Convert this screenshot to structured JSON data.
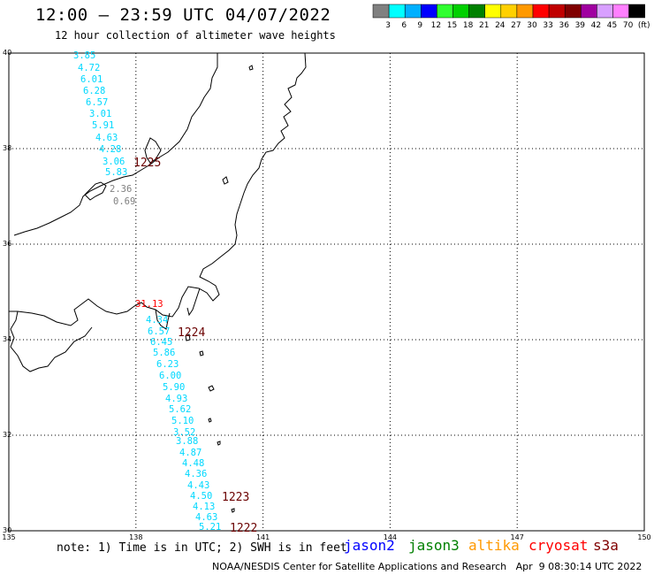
{
  "header": {
    "title": "12:00 – 23:59 UTC 04/07/2022",
    "subtitle": "12 hour collection of altimeter wave heights"
  },
  "color_scale": {
    "labels": [
      "3",
      "6",
      "9",
      "12",
      "15",
      "18",
      "21",
      "24",
      "27",
      "30",
      "33",
      "36",
      "39",
      "42",
      "45",
      "70",
      "(ft)"
    ],
    "colors": [
      "#808080",
      "#00ffff",
      "#00b0ff",
      "#0000ff",
      "#30ff30",
      "#00d000",
      "#008000",
      "#ffff00",
      "#ffd000",
      "#ff9900",
      "#ff0000",
      "#c00000",
      "#800000",
      "#a000a0",
      "#d8a0ff",
      "#ff80ff",
      "#000000"
    ]
  },
  "axes": {
    "lat_labels": [
      "40",
      "38",
      "36",
      "34",
      "32",
      "30"
    ],
    "lon_labels": [
      "135",
      "138",
      "141",
      "144",
      "147",
      "150"
    ],
    "lat_values": [
      40,
      38,
      36,
      34,
      32,
      30
    ],
    "lon_values": [
      135,
      138,
      141,
      144,
      147,
      150
    ],
    "lat_range": [
      30,
      40
    ],
    "lon_range": [
      135,
      150
    ],
    "grid_lon_values": [
      138,
      141,
      144,
      147
    ],
    "grid_lat_values": [
      38,
      36,
      34,
      32
    ]
  },
  "wave_readings": [
    {
      "text": "3.85",
      "color": "#00d8ff"
    },
    {
      "text": "4.72",
      "color": "#00d8ff"
    },
    {
      "text": "6.01",
      "color": "#00d8ff"
    },
    {
      "text": "6.28",
      "color": "#00d8ff"
    },
    {
      "text": "6.57",
      "color": "#00d8ff"
    },
    {
      "text": "3.01",
      "color": "#00d8ff"
    },
    {
      "text": "5.91",
      "color": "#00d8ff"
    },
    {
      "text": "4.63",
      "color": "#00d8ff"
    },
    {
      "text": "4.28",
      "color": "#00d8ff"
    },
    {
      "text": "3.06",
      "color": "#00d8ff"
    },
    {
      "text": "5.83",
      "color": "#00d8ff"
    },
    {
      "text": "2.36",
      "color": "#808080"
    },
    {
      "text": "0.69",
      "color": "#808080"
    },
    {
      "text": "31.13",
      "color": "#ff0000"
    },
    {
      "text": "4.34",
      "color": "#00d8ff"
    },
    {
      "text": "6.57",
      "color": "#00d8ff"
    },
    {
      "text": "6.45",
      "color": "#00d8ff"
    },
    {
      "text": "5.86",
      "color": "#00d8ff"
    },
    {
      "text": "6.23",
      "color": "#00d8ff"
    },
    {
      "text": "6.00",
      "color": "#00d8ff"
    },
    {
      "text": "5.90",
      "color": "#00d8ff"
    },
    {
      "text": "4.93",
      "color": "#00d8ff"
    },
    {
      "text": "5.62",
      "color": "#00d8ff"
    },
    {
      "text": "5.10",
      "color": "#00d8ff"
    },
    {
      "text": "3.52",
      "color": "#00d8ff"
    },
    {
      "text": "3.88",
      "color": "#00d8ff"
    },
    {
      "text": "4.87",
      "color": "#00d8ff"
    },
    {
      "text": "4.48",
      "color": "#00d8ff"
    },
    {
      "text": "4.36",
      "color": "#00d8ff"
    },
    {
      "text": "4.43",
      "color": "#00d8ff"
    },
    {
      "text": "4.50",
      "color": "#00d8ff"
    },
    {
      "text": "4.13",
      "color": "#00d8ff"
    },
    {
      "text": "4.63",
      "color": "#00d8ff"
    },
    {
      "text": "5.21",
      "color": "#00d8ff"
    }
  ],
  "pass_times": [
    "1225",
    "1224",
    "1223",
    "1222"
  ],
  "footer": {
    "note": "note: 1) Time is in UTC; 2) SWH is in feet",
    "credit": "NOAA/NESDIS Center for Satellite Applications and Research   Apr  9 08:30:14 UTC 2022"
  },
  "satellites": [
    {
      "name": "jason2",
      "color": "#0000ff"
    },
    {
      "name": "jason3",
      "color": "#008000"
    },
    {
      "name": "altika",
      "color": "#ff9900"
    },
    {
      "name": "cryosat",
      "color": "#ff0000"
    },
    {
      "name": "s3a",
      "color": "#800000"
    }
  ]
}
